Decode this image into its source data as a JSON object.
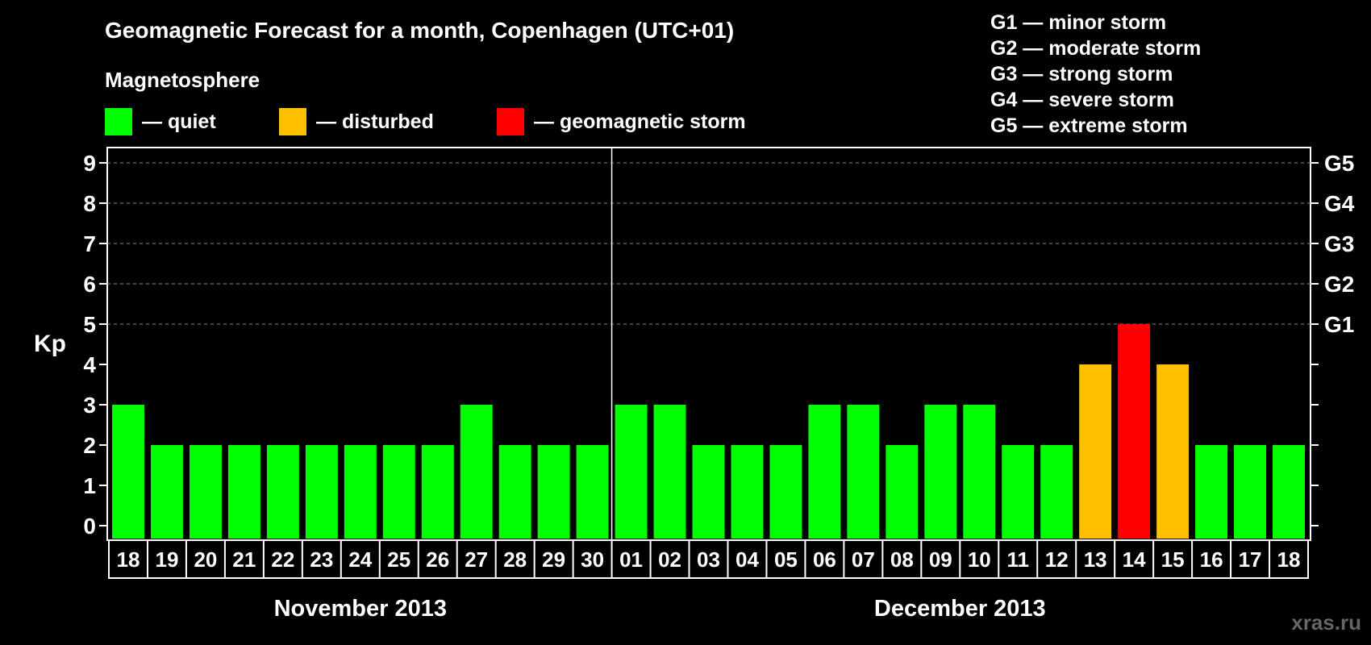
{
  "title": "Geomagnetic Forecast for a month, Copenhagen (UTC+01)",
  "subtitle": "Magnetosphere",
  "legend": [
    {
      "label": "— quiet",
      "color": "#00ff00"
    },
    {
      "label": "— disturbed",
      "color": "#ffc000"
    },
    {
      "label": "— geomagnetic storm",
      "color": "#ff0000"
    }
  ],
  "g_legend": [
    "G1 — minor storm",
    "G2 — moderate storm",
    "G3 — strong storm",
    "G4 — severe storm",
    "G5 — extreme storm"
  ],
  "ylabel": "Kp",
  "watermark": "xras.ru",
  "chart_data": {
    "type": "bar",
    "categories": [
      "18",
      "19",
      "20",
      "21",
      "22",
      "23",
      "24",
      "25",
      "26",
      "27",
      "28",
      "29",
      "30",
      "01",
      "02",
      "03",
      "04",
      "05",
      "06",
      "07",
      "08",
      "09",
      "10",
      "11",
      "12",
      "13",
      "14",
      "15",
      "16",
      "17",
      "18"
    ],
    "values": [
      3,
      2,
      2,
      2,
      2,
      2,
      2,
      2,
      2,
      3,
      2,
      2,
      2,
      3,
      3,
      2,
      2,
      2,
      3,
      3,
      2,
      3,
      3,
      2,
      2,
      4,
      5,
      4,
      2,
      2,
      2
    ],
    "ylim": [
      0,
      9
    ],
    "yticks": [
      "0",
      "1",
      "2",
      "3",
      "4",
      "5",
      "6",
      "7",
      "8",
      "9"
    ],
    "right_ticks": [
      {
        "value": 5,
        "label": "G1"
      },
      {
        "value": 6,
        "label": "G2"
      },
      {
        "value": 7,
        "label": "G3"
      },
      {
        "value": 8,
        "label": "G4"
      },
      {
        "value": 9,
        "label": "G5"
      }
    ],
    "months": [
      {
        "label": "November 2013",
        "start": 0,
        "count": 13
      },
      {
        "label": "December 2013",
        "start": 13,
        "count": 18
      }
    ],
    "grid": true,
    "color_thresholds": {
      "quiet": "#00ff00",
      "disturbed": "#ffc000",
      "storm": "#ff0000"
    }
  }
}
